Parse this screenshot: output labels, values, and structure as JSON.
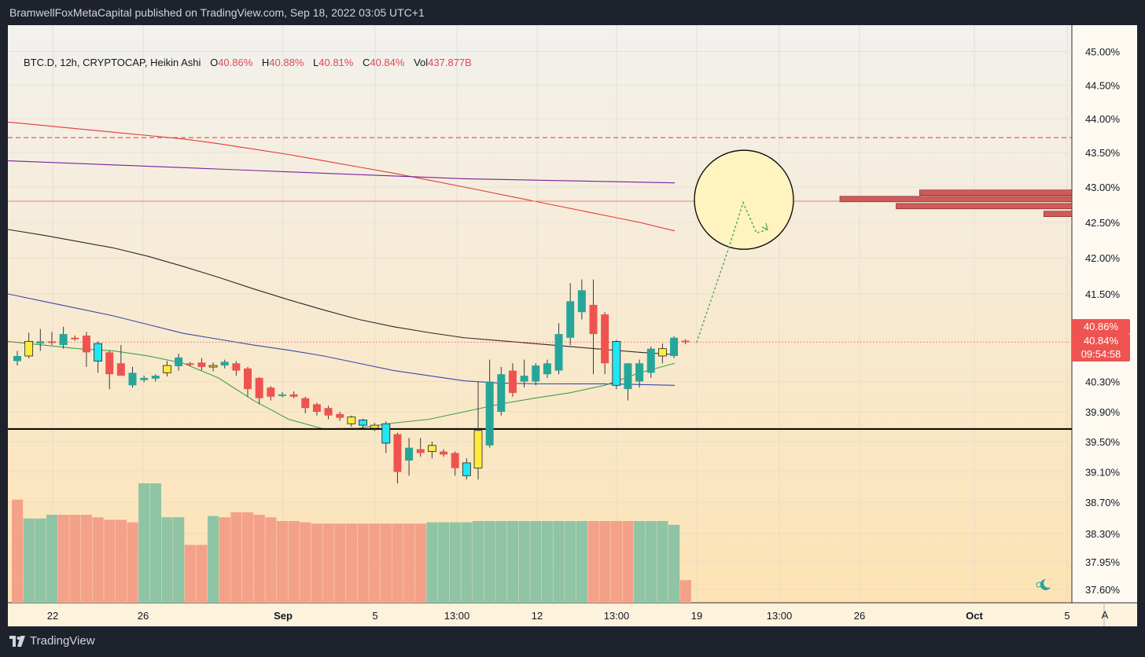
{
  "header": {
    "publish_line": "BramwellFoxMetaCapital published on TradingView.com, Sep 18, 2022 03:05 UTC+1"
  },
  "legend": {
    "symbol": "BTC.D, 12h, CRYPTOCAP, Heikin Ashi",
    "o_label": "O",
    "o_value": "40.86%",
    "h_label": "H",
    "h_value": "40.88%",
    "l_label": "L",
    "l_value": "40.81%",
    "c_label": "C",
    "c_value": "40.84%",
    "vol_label": "Vol",
    "vol_value": "437.877B"
  },
  "price_tags": {
    "open": "40.86%",
    "close": "40.84%",
    "countdown": "09:54:58"
  },
  "footer": {
    "brand": "TradingView",
    "auto_button": "A"
  },
  "colors": {
    "background_top": "#f2f1ee",
    "background_bottom": "#fde3b4",
    "up": "#26a69a",
    "down": "#ef5350",
    "doji": "#ffeb3b",
    "cyan": "#22e5f5",
    "ma_black": "#2a2a2a",
    "ma_red": "#e53935",
    "ma_purple": "#7b1fa2",
    "ma_blue": "#3949ab",
    "ma_green": "#43a047",
    "support_line": "#000000",
    "resistance_dashed": "#e53935",
    "circle_fill": "#fff3bf"
  },
  "chart_data": {
    "type": "candlestick",
    "title": "",
    "timeframe": "12h",
    "style": "Heikin Ashi",
    "y_axis": {
      "ticks": [
        "45.00%",
        "44.50%",
        "44.00%",
        "43.50%",
        "43.00%",
        "42.50%",
        "42.00%",
        "41.50%",
        "40.30%",
        "39.90%",
        "39.50%",
        "39.10%",
        "38.70%",
        "38.30%",
        "37.95%",
        "37.60%"
      ],
      "range": [
        37.4,
        45.3
      ]
    },
    "x_axis": {
      "ticks": [
        "22",
        "26",
        "Sep",
        "5",
        "13:00",
        "12",
        "13:00",
        "19",
        "13:00",
        "26",
        "Oct",
        "5"
      ]
    },
    "candles": [
      {
        "o": 40.58,
        "h": 40.72,
        "l": 40.52,
        "c": 40.65,
        "color": "up"
      },
      {
        "o": 40.65,
        "h": 40.97,
        "l": 40.62,
        "c": 40.85,
        "color": "yellow"
      },
      {
        "o": 40.85,
        "h": 41.02,
        "l": 40.72,
        "c": 40.82,
        "color": "up"
      },
      {
        "o": 40.85,
        "h": 40.98,
        "l": 40.8,
        "c": 40.85,
        "color": "down"
      },
      {
        "o": 40.8,
        "h": 41.05,
        "l": 40.75,
        "c": 40.95,
        "color": "up"
      },
      {
        "o": 40.9,
        "h": 40.93,
        "l": 40.86,
        "c": 40.88,
        "color": "down"
      },
      {
        "o": 40.93,
        "h": 40.98,
        "l": 40.5,
        "c": 40.7,
        "color": "down"
      },
      {
        "o": 40.82,
        "h": 40.85,
        "l": 40.42,
        "c": 40.58,
        "color": "cyan"
      },
      {
        "o": 40.7,
        "h": 40.72,
        "l": 40.2,
        "c": 40.4,
        "color": "down"
      },
      {
        "o": 40.55,
        "h": 40.8,
        "l": 40.4,
        "c": 40.38,
        "color": "down"
      },
      {
        "o": 40.25,
        "h": 40.5,
        "l": 40.22,
        "c": 40.42,
        "color": "up"
      },
      {
        "o": 40.32,
        "h": 40.38,
        "l": 40.29,
        "c": 40.35,
        "color": "up"
      },
      {
        "o": 40.34,
        "h": 40.4,
        "l": 40.3,
        "c": 40.38,
        "color": "up"
      },
      {
        "o": 40.42,
        "h": 40.58,
        "l": 40.37,
        "c": 40.52,
        "color": "yellow"
      },
      {
        "o": 40.51,
        "h": 40.68,
        "l": 40.45,
        "c": 40.63,
        "color": "up"
      },
      {
        "o": 40.55,
        "h": 40.57,
        "l": 40.51,
        "c": 40.53,
        "color": "down"
      },
      {
        "o": 40.56,
        "h": 40.62,
        "l": 40.45,
        "c": 40.5,
        "color": "down"
      },
      {
        "o": 40.5,
        "h": 40.56,
        "l": 40.44,
        "c": 40.52,
        "color": "yellow"
      },
      {
        "o": 40.52,
        "h": 40.6,
        "l": 40.48,
        "c": 40.57,
        "color": "up"
      },
      {
        "o": 40.55,
        "h": 40.58,
        "l": 40.38,
        "c": 40.45,
        "color": "down"
      },
      {
        "o": 40.48,
        "h": 40.5,
        "l": 40.1,
        "c": 40.2,
        "color": "down"
      },
      {
        "o": 40.35,
        "h": 40.36,
        "l": 40.0,
        "c": 40.08,
        "color": "down"
      },
      {
        "o": 40.22,
        "h": 40.24,
        "l": 40.05,
        "c": 40.1,
        "color": "down"
      },
      {
        "o": 40.13,
        "h": 40.16,
        "l": 40.09,
        "c": 40.11,
        "color": "up"
      },
      {
        "o": 40.13,
        "h": 40.17,
        "l": 40.08,
        "c": 40.1,
        "color": "down"
      },
      {
        "o": 40.08,
        "h": 40.1,
        "l": 39.88,
        "c": 39.95,
        "color": "down"
      },
      {
        "o": 40.0,
        "h": 40.02,
        "l": 39.85,
        "c": 39.9,
        "color": "down"
      },
      {
        "o": 39.95,
        "h": 39.98,
        "l": 39.8,
        "c": 39.85,
        "color": "down"
      },
      {
        "o": 39.87,
        "h": 39.9,
        "l": 39.78,
        "c": 39.82,
        "color": "down"
      },
      {
        "o": 39.83,
        "h": 39.85,
        "l": 39.7,
        "c": 39.74,
        "color": "yellow"
      },
      {
        "o": 39.79,
        "h": 39.81,
        "l": 39.68,
        "c": 39.72,
        "color": "cyan"
      },
      {
        "o": 39.72,
        "h": 39.75,
        "l": 39.64,
        "c": 39.68,
        "color": "yellow"
      },
      {
        "o": 39.74,
        "h": 39.77,
        "l": 39.35,
        "c": 39.48,
        "color": "cyan"
      },
      {
        "o": 39.6,
        "h": 39.62,
        "l": 38.95,
        "c": 39.1,
        "color": "down"
      },
      {
        "o": 39.25,
        "h": 39.55,
        "l": 39.05,
        "c": 39.42,
        "color": "up"
      },
      {
        "o": 39.4,
        "h": 39.55,
        "l": 39.3,
        "c": 39.35,
        "color": "down"
      },
      {
        "o": 39.37,
        "h": 39.5,
        "l": 39.28,
        "c": 39.45,
        "color": "yellow"
      },
      {
        "o": 39.37,
        "h": 39.4,
        "l": 39.3,
        "c": 39.33,
        "color": "down"
      },
      {
        "o": 39.35,
        "h": 39.37,
        "l": 39.05,
        "c": 39.15,
        "color": "down"
      },
      {
        "o": 39.05,
        "h": 39.28,
        "l": 39.0,
        "c": 39.22,
        "color": "cyan"
      },
      {
        "o": 39.15,
        "h": 40.3,
        "l": 39.0,
        "c": 39.65,
        "color": "yellow"
      },
      {
        "o": 39.45,
        "h": 40.6,
        "l": 39.42,
        "c": 40.3,
        "color": "up"
      },
      {
        "o": 39.9,
        "h": 40.5,
        "l": 39.85,
        "c": 40.4,
        "color": "up"
      },
      {
        "o": 40.15,
        "h": 40.55,
        "l": 40.1,
        "c": 40.45,
        "color": "down"
      },
      {
        "o": 40.3,
        "h": 40.6,
        "l": 40.22,
        "c": 40.38,
        "color": "up"
      },
      {
        "o": 40.3,
        "h": 40.55,
        "l": 40.25,
        "c": 40.52,
        "color": "up"
      },
      {
        "o": 40.4,
        "h": 40.6,
        "l": 40.35,
        "c": 40.55,
        "color": "up"
      },
      {
        "o": 40.45,
        "h": 41.1,
        "l": 40.4,
        "c": 40.95,
        "color": "up"
      },
      {
        "o": 40.9,
        "h": 41.65,
        "l": 40.8,
        "c": 41.4,
        "color": "up"
      },
      {
        "o": 41.25,
        "h": 41.7,
        "l": 41.15,
        "c": 41.55,
        "color": "up"
      },
      {
        "o": 41.35,
        "h": 41.7,
        "l": 40.4,
        "c": 40.95,
        "color": "down"
      },
      {
        "o": 41.22,
        "h": 41.25,
        "l": 40.4,
        "c": 40.55,
        "color": "down"
      },
      {
        "o": 40.85,
        "h": 40.87,
        "l": 40.2,
        "c": 40.25,
        "color": "cyan"
      },
      {
        "o": 40.2,
        "h": 40.55,
        "l": 40.05,
        "c": 40.55,
        "color": "up"
      },
      {
        "o": 40.3,
        "h": 40.6,
        "l": 40.22,
        "c": 40.55,
        "color": "up"
      },
      {
        "o": 40.42,
        "h": 40.78,
        "l": 40.35,
        "c": 40.75,
        "color": "up"
      },
      {
        "o": 40.65,
        "h": 40.82,
        "l": 40.55,
        "c": 40.75,
        "color": "yellow"
      },
      {
        "o": 40.65,
        "h": 40.92,
        "l": 40.62,
        "c": 40.9,
        "color": "up"
      },
      {
        "o": 40.86,
        "h": 40.88,
        "l": 40.81,
        "c": 40.84,
        "color": "down"
      }
    ],
    "volume_colors": [
      "down",
      "up",
      "up",
      "up",
      "down",
      "down",
      "down",
      "down",
      "down",
      "down",
      "down",
      "up",
      "up",
      "up",
      "up",
      "down",
      "down",
      "up",
      "down",
      "down",
      "down",
      "down",
      "down",
      "down",
      "down",
      "down",
      "down",
      "down",
      "down",
      "down",
      "down",
      "down",
      "down",
      "down",
      "down",
      "down",
      "up",
      "up",
      "up",
      "up",
      "up",
      "up",
      "up",
      "up",
      "up",
      "up",
      "up",
      "up",
      "up",
      "up",
      "down",
      "down",
      "down",
      "down",
      "up",
      "up",
      "up",
      "up",
      "down"
    ],
    "volume_relative": [
      0.82,
      0.67,
      0.67,
      0.7,
      0.7,
      0.7,
      0.7,
      0.68,
      0.66,
      0.66,
      0.64,
      0.95,
      0.95,
      0.68,
      0.68,
      0.46,
      0.46,
      0.69,
      0.68,
      0.72,
      0.72,
      0.7,
      0.68,
      0.65,
      0.65,
      0.64,
      0.63,
      0.63,
      0.63,
      0.63,
      0.63,
      0.63,
      0.63,
      0.63,
      0.63,
      0.63,
      0.64,
      0.64,
      0.64,
      0.64,
      0.65,
      0.65,
      0.65,
      0.65,
      0.65,
      0.65,
      0.65,
      0.65,
      0.65,
      0.65,
      0.65,
      0.65,
      0.65,
      0.65,
      0.65,
      0.65,
      0.65,
      0.62,
      0.18
    ],
    "moving_averages": [
      {
        "color": "red",
        "values": [
          43.95,
          43.9,
          43.85,
          43.8,
          43.75,
          43.7,
          43.63,
          43.55,
          43.47,
          43.38,
          43.29,
          43.2,
          43.1,
          43.0,
          42.9,
          42.8,
          42.7,
          42.6,
          42.5,
          42.38
        ]
      },
      {
        "color": "purple",
        "values": [
          43.38,
          43.36,
          43.34,
          43.32,
          43.3,
          43.28,
          43.26,
          43.24,
          43.22,
          43.2,
          43.18,
          43.16,
          43.14,
          43.12,
          43.11,
          43.1,
          43.09,
          43.08,
          43.07,
          43.06
        ]
      },
      {
        "color": "black",
        "values": [
          42.4,
          42.32,
          42.23,
          42.14,
          42.02,
          41.88,
          41.73,
          41.57,
          41.42,
          41.28,
          41.15,
          41.05,
          40.97,
          40.9,
          40.86,
          40.82,
          40.78,
          40.74,
          40.7,
          40.67
        ]
      },
      {
        "color": "blue",
        "values": [
          41.5,
          41.4,
          41.3,
          41.2,
          41.08,
          40.96,
          40.88,
          40.8,
          40.73,
          40.65,
          40.55,
          40.45,
          40.38,
          40.31,
          40.28,
          40.27,
          40.27,
          40.27,
          40.26,
          40.25
        ]
      },
      {
        "color": "green",
        "values": [
          40.85,
          40.8,
          40.75,
          40.72,
          40.65,
          40.55,
          40.35,
          40.05,
          39.8,
          39.67,
          39.68,
          39.75,
          39.8,
          39.9,
          40.0,
          40.08,
          40.15,
          40.25,
          40.42,
          40.55
        ]
      }
    ],
    "horizontal_levels": [
      {
        "price": 43.72,
        "style": "dashed"
      },
      {
        "price": 42.8,
        "style": "thin"
      },
      {
        "price": 39.67,
        "style": "solid-bold"
      },
      {
        "price": 40.84,
        "style": "dotted"
      }
    ],
    "projection_path": [
      [
        40.84,
        0
      ],
      [
        42.15,
        0
      ],
      [
        42.78,
        0
      ],
      [
        42.35,
        0
      ],
      [
        42.4,
        0
      ]
    ],
    "volume_profile": [
      {
        "price": 42.92,
        "length": 0.65
      },
      {
        "price": 42.83,
        "length": 0.99
      },
      {
        "price": 42.73,
        "length": 0.75
      },
      {
        "price": 42.62,
        "length": 0.12
      }
    ]
  }
}
